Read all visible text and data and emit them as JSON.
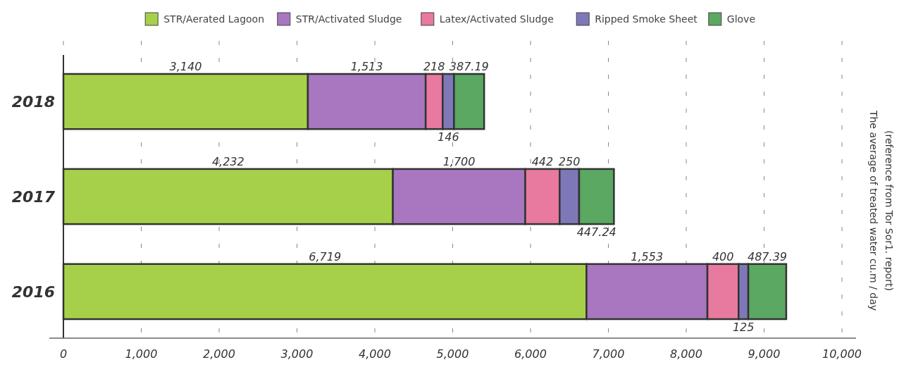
{
  "chart_data": {
    "type": "bar",
    "orientation": "horizontal",
    "stacked": true,
    "ylabel": "The average of treated water cu.m / day\n(reference from Tor Sor1. report)",
    "categories": [
      "2018",
      "2017",
      "2016"
    ],
    "series": [
      {
        "name": "STR/Aerated Lagoon",
        "color": "#a6d04a",
        "values": [
          3140,
          4232,
          6719
        ],
        "value_labels": [
          "3,140",
          "4,232",
          "6,719"
        ]
      },
      {
        "name": "STR/Activated Sludge",
        "color": "#a877c0",
        "values": [
          1513,
          1700,
          1553
        ],
        "value_labels": [
          "1,513",
          "1,700",
          "1,553"
        ]
      },
      {
        "name": "Latex/Activated Sludge",
        "color": "#e8799f",
        "values": [
          218,
          442,
          400
        ],
        "value_labels": [
          "218",
          "442",
          "400"
        ]
      },
      {
        "name": "Ripped Smoke Sheet",
        "color": "#7f78b8",
        "values": [
          146,
          250,
          125
        ],
        "value_labels": [
          "146",
          "250",
          "125"
        ]
      },
      {
        "name": "Glove",
        "color": "#5aa862",
        "values": [
          387.19,
          447.24,
          487.39
        ],
        "value_labels": [
          "387.19",
          "447.24",
          "487.39"
        ]
      }
    ],
    "xlim": [
      0,
      10000
    ],
    "xticks": [
      0,
      {
        "value": 1000,
        "label": "1,000"
      },
      {
        "value": 2000,
        "label": "2,000"
      },
      {
        "value": 3000,
        "label": "3,000"
      },
      {
        "value": 4000,
        "label": "4,000"
      },
      {
        "value": 5000,
        "label": "5,000"
      },
      {
        "value": 6000,
        "label": "6,000"
      },
      {
        "value": 7000,
        "label": "7,000"
      },
      {
        "value": 8000,
        "label": "8,000"
      },
      {
        "value": 9000,
        "label": "9,000"
      },
      {
        "value": 10000,
        "label": "10,000"
      }
    ],
    "grid": "x",
    "legend": "top"
  }
}
